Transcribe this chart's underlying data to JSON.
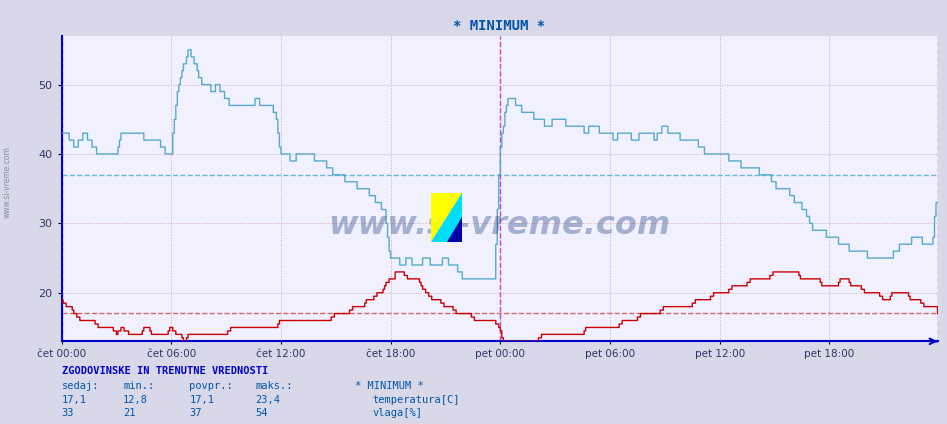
{
  "title": "* MINIMUM *",
  "title_color": "#0055aa",
  "bg_color": "#d8d8e8",
  "plot_bg_color": "#f0f0ff",
  "temp_color": "#cc0000",
  "vlaga_color": "#55aacc",
  "temp_avg": 17.1,
  "vlaga_avg": 37,
  "temp_min": 12.8,
  "temp_max": 23.4,
  "temp_curr": 17.1,
  "vlaga_min": 21,
  "vlaga_max": 54,
  "vlaga_curr": 33,
  "ylim": [
    13,
    57
  ],
  "yticks": [
    20,
    30,
    40,
    50
  ],
  "xtick_labels": [
    "čet 00:00",
    "čet 06:00",
    "čet 12:00",
    "čet 18:00",
    "pet 00:00",
    "pet 06:00",
    "pet 12:00",
    "pet 18:00"
  ],
  "watermark": "www.si-vreme.com",
  "legend_title": "* MINIMUM *",
  "footer_title": "ZGODOVINSKE IN TRENUTNE VREDNOSTI",
  "col_headers": [
    "sedaj:",
    "min.:",
    "povpr.:",
    "maks.:"
  ],
  "temp_label": "temperatura[C]",
  "vlaga_label": "vlaga[%]",
  "grid_color": "#ddaaaa",
  "grid_vcolor": "#ccaaaa",
  "spine_color": "#0000cc",
  "avg_line_temp_color": "#cc4444",
  "avg_line_vlaga_color": "#44aacc",
  "vline_color": "#cc44cc"
}
